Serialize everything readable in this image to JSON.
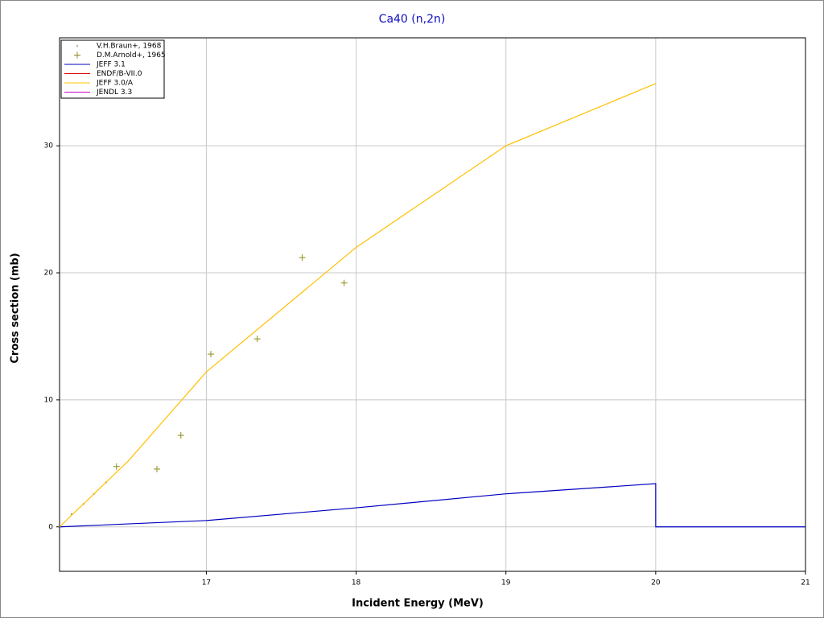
{
  "chart_data": {
    "type": "line",
    "title": "Ca40 (n,2n)",
    "x_label": "Incident Energy (MeV)",
    "y_label": "Cross section (mb)",
    "xlim": [
      16.02,
      21
    ],
    "ylim": [
      -3.5,
      38.5
    ],
    "xticks": [
      17,
      18,
      19,
      20,
      21
    ],
    "yticks": [
      0,
      10,
      20,
      30
    ],
    "grid": true,
    "legend": "top-left",
    "series": [
      {
        "name": "V.H.Braun+, 1968",
        "color": "#a0a070",
        "marker": "dot",
        "x": [
          16.1,
          16.18,
          16.25,
          16.33
        ],
        "values": [
          1,
          1.8,
          2.6,
          3.5
        ]
      },
      {
        "name": "D.M.Arnold+, 1965",
        "color": "#8b8b1a",
        "marker": "plus",
        "x": [
          16.4,
          16.67,
          16.83,
          17.03,
          17.34,
          17.64,
          17.92
        ],
        "values": [
          4.75,
          4.55,
          7.2,
          13.6,
          14.8,
          21.2,
          19.2
        ]
      },
      {
        "name": "JEFF 3.1",
        "color": "#0000c0",
        "marker": "line",
        "x": [
          16.02,
          17,
          18,
          19,
          20,
          20,
          21
        ],
        "values": [
          0,
          0.5,
          1.5,
          2.6,
          3.4,
          0,
          0
        ]
      },
      {
        "name": "ENDF/B-VII.0",
        "color": "#e00000",
        "marker": "line",
        "x": [],
        "values": []
      },
      {
        "name": "JEFF 3.0/A",
        "color": "#ffc000",
        "marker": "line",
        "x": [
          16.02,
          16.48,
          17,
          18,
          19,
          20
        ],
        "values": [
          0,
          5.2,
          12.2,
          22,
          30,
          34.9
        ]
      },
      {
        "name": "JENDL 3.3",
        "color": "#d000d0",
        "marker": "line",
        "x": [],
        "values": []
      }
    ]
  }
}
